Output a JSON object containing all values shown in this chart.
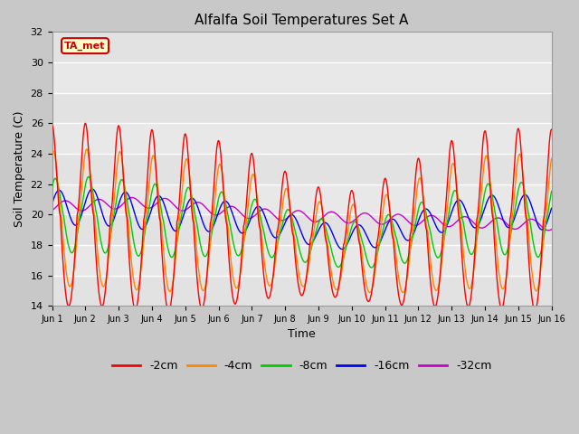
{
  "title": "Alfalfa Soil Temperatures Set A",
  "xlabel": "Time",
  "ylabel": "Soil Temperature (C)",
  "ylim": [
    14,
    32
  ],
  "xlim": [
    0,
    15
  ],
  "yticks": [
    14,
    16,
    18,
    20,
    22,
    24,
    26,
    28,
    30,
    32
  ],
  "xtick_labels": [
    "Jun 1",
    "Jun 2",
    "Jun 3",
    "Jun 4",
    "Jun 5",
    "Jun 6",
    "Jun 7",
    "Jun 8",
    "Jun 9",
    "Jun 10",
    "Jun 11",
    "Jun 12",
    "Jun 13",
    "Jun 14",
    "Jun 15",
    "Jun 16"
  ],
  "line_colors": {
    "-2cm": "#ff0000",
    "-4cm": "#ff8800",
    "-8cm": "#00cc00",
    "-16cm": "#0000ff",
    "-32cm": "#cc00cc"
  },
  "legend_label": "TA_met",
  "legend_box_color": "#ffffcc",
  "legend_border_color": "#cc0000",
  "fig_bg": "#c8c8c8",
  "ax_bg": "#e8e8e8",
  "grid_color": "#ffffff",
  "band1_color": "#e0e0e0",
  "band2_color": "#d0d0d0"
}
